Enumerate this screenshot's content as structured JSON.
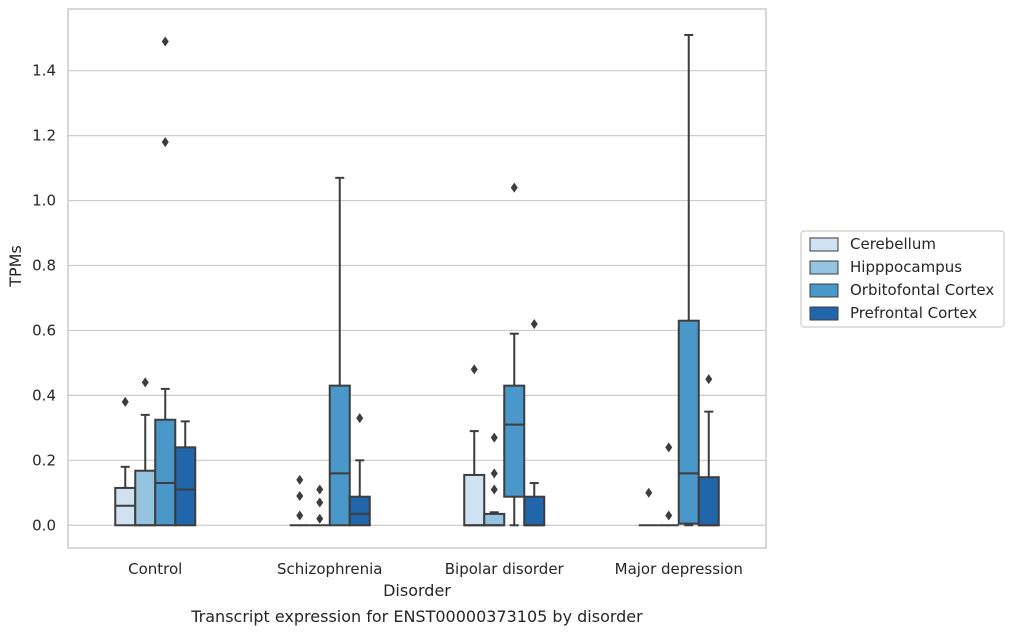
{
  "chart_data": {
    "type": "box",
    "title": "",
    "caption": "Transcript expression for ENST00000373105 by disorder",
    "xlabel": "Disorder",
    "ylabel": "TPMs",
    "ylim": [
      -0.07,
      1.59
    ],
    "yticks": [
      "0.0",
      "0.2",
      "0.4",
      "0.6",
      "0.8",
      "1.0",
      "1.2",
      "1.4"
    ],
    "grid": true,
    "legend_position": "right",
    "categories": [
      "Control",
      "Schizophrenia",
      "Bipolar disorder",
      "Major depression"
    ],
    "series": [
      {
        "name": "Cerebellum",
        "color": "#d0e1f2",
        "boxes": [
          {
            "whislo": 0.0,
            "q1": 0.0,
            "med": 0.06,
            "q3": 0.115,
            "whishi": 0.18,
            "fliers": [
              0.38
            ]
          },
          {
            "whislo": 0.0,
            "q1": 0.0,
            "med": 0.0,
            "q3": 0.0,
            "whishi": 0.0,
            "fliers": [
              0.03,
              0.09,
              0.14
            ]
          },
          {
            "whislo": 0.0,
            "q1": 0.0,
            "med": 0.0,
            "q3": 0.155,
            "whishi": 0.29,
            "fliers": [
              0.48
            ]
          },
          {
            "whislo": 0.0,
            "q1": 0.0,
            "med": 0.0,
            "q3": 0.0,
            "whishi": 0.0,
            "fliers": [
              0.1
            ]
          }
        ]
      },
      {
        "name": "Hipppocampus",
        "color": "#94c4df",
        "boxes": [
          {
            "whislo": 0.0,
            "q1": 0.0,
            "med": 0.0,
            "q3": 0.168,
            "whishi": 0.34,
            "fliers": [
              0.44
            ]
          },
          {
            "whislo": 0.0,
            "q1": 0.0,
            "med": 0.0,
            "q3": 0.0,
            "whishi": 0.0,
            "fliers": [
              0.02,
              0.07,
              0.11
            ]
          },
          {
            "whislo": 0.0,
            "q1": 0.0,
            "med": 0.0,
            "q3": 0.035,
            "whishi": 0.04,
            "fliers": [
              0.11,
              0.16,
              0.27
            ]
          },
          {
            "whislo": 0.0,
            "q1": 0.0,
            "med": 0.0,
            "q3": 0.0,
            "whishi": 0.0,
            "fliers": [
              0.03,
              0.24
            ]
          }
        ]
      },
      {
        "name": "Orbitofontal Cortex",
        "color": "#4a98c9",
        "boxes": [
          {
            "whislo": 0.0,
            "q1": 0.0,
            "med": 0.13,
            "q3": 0.325,
            "whishi": 0.42,
            "fliers": [
              1.18,
              1.49
            ]
          },
          {
            "whislo": 0.0,
            "q1": 0.0,
            "med": 0.16,
            "q3": 0.43,
            "whishi": 1.07,
            "fliers": []
          },
          {
            "whislo": 0.0,
            "q1": 0.088,
            "med": 0.31,
            "q3": 0.43,
            "whishi": 0.59,
            "fliers": [
              1.04
            ]
          },
          {
            "whislo": 0.0,
            "q1": 0.005,
            "med": 0.16,
            "q3": 0.63,
            "whishi": 1.51,
            "fliers": []
          }
        ]
      },
      {
        "name": "Prefrontal Cortex",
        "color": "#2165ab",
        "boxes": [
          {
            "whislo": 0.0,
            "q1": 0.0,
            "med": 0.11,
            "q3": 0.24,
            "whishi": 0.32,
            "fliers": []
          },
          {
            "whislo": 0.0,
            "q1": 0.0,
            "med": 0.035,
            "q3": 0.088,
            "whishi": 0.2,
            "fliers": [
              0.33
            ]
          },
          {
            "whislo": 0.0,
            "q1": 0.0,
            "med": 0.0,
            "q3": 0.088,
            "whishi": 0.13,
            "fliers": [
              0.62
            ]
          },
          {
            "whislo": 0.0,
            "q1": 0.0,
            "med": 0.0,
            "q3": 0.148,
            "whishi": 0.35,
            "fliers": [
              0.45
            ]
          }
        ]
      }
    ]
  }
}
